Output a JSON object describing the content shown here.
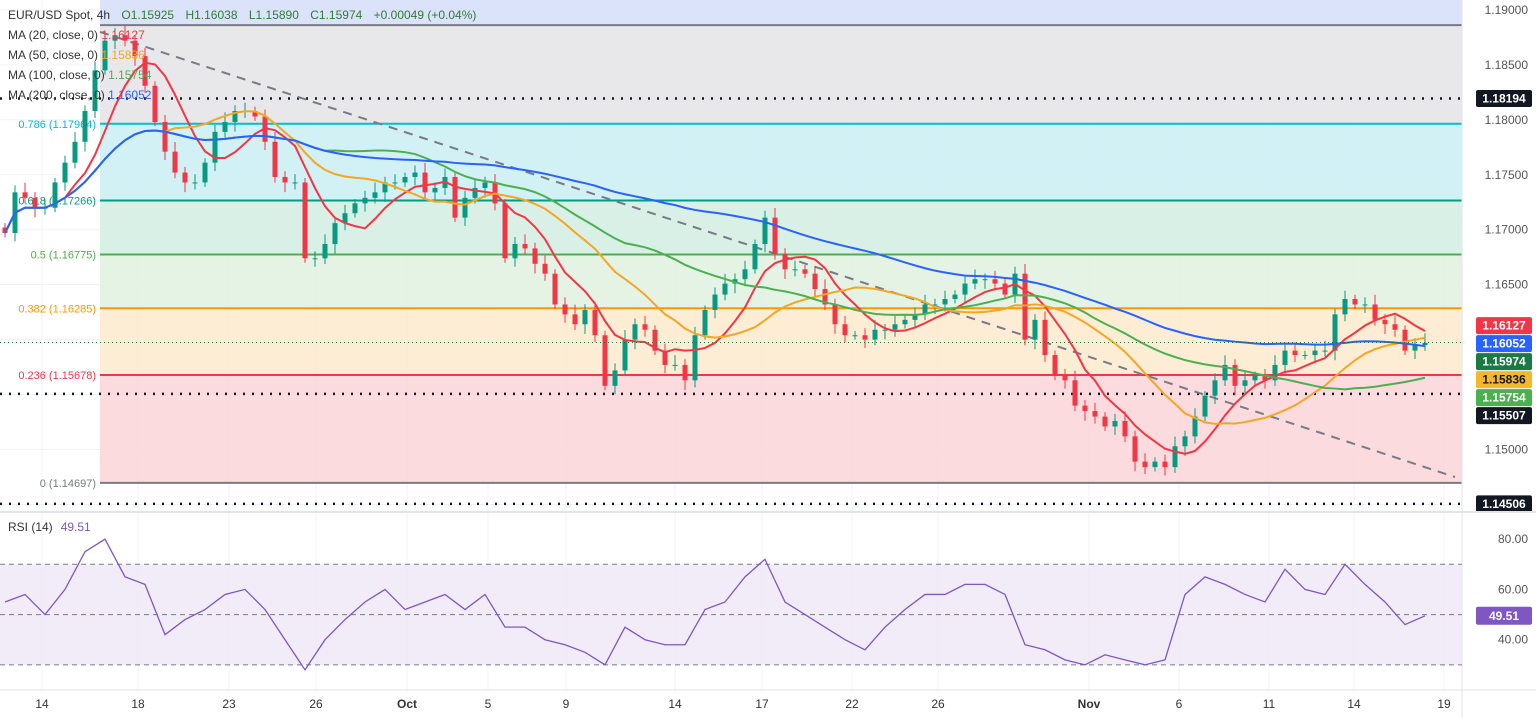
{
  "header": {
    "symbol": "EUR/USD Spot, 4h",
    "open": "O1.15925",
    "high": "H1.16038",
    "low": "L1.15890",
    "close": "C1.15974",
    "change": "+0.00049 (+0.04%)"
  },
  "indicators": [
    {
      "label": "MA (20, close, 0)",
      "value": "1.16127",
      "color": "#f23645"
    },
    {
      "label": "MA (50, close, 0)",
      "value": "1.15836",
      "color": "#f5a623"
    },
    {
      "label": "MA (100, close, 0)",
      "value": "1.15754",
      "color": "#4caf50"
    },
    {
      "label": "MA (200, close, 0)",
      "value": "1.16052",
      "color": "#2962ff"
    }
  ],
  "rsi": {
    "label": "RSI (14)",
    "value": "49.51",
    "color": "#7e57c2"
  },
  "chart_data": {
    "type": "candlestick",
    "price_range": [
      1.1445,
      1.1909
    ],
    "close": [
      1.1697,
      1.1734,
      1.1729,
      1.172,
      1.172,
      1.1743,
      1.1761,
      1.178,
      1.1808,
      1.1845,
      1.1872,
      1.1877,
      1.1872,
      1.1858,
      1.1831,
      1.1798,
      1.1771,
      1.1752,
      1.1743,
      1.1743,
      1.1761,
      1.1789,
      1.1798,
      1.1808,
      1.1808,
      1.1803,
      1.178,
      1.1748,
      1.1743,
      1.1743,
      1.1674,
      1.1674,
      1.1687,
      1.1706,
      1.1715,
      1.1724,
      1.1729,
      1.1734,
      1.1743,
      1.1743,
      1.1748,
      1.1752,
      1.1734,
      1.1738,
      1.1748,
      1.1711,
      1.1729,
      1.1738,
      1.1743,
      1.1724,
      1.1674,
      1.1687,
      1.1683,
      1.1669,
      1.166,
      1.1632,
      1.1623,
      1.1614,
      1.1627,
      1.1604,
      1.1558,
      1.1572,
      1.16,
      1.1614,
      1.1609,
      1.159,
      1.1577,
      1.1577,
      1.1563,
      1.1604,
      1.1627,
      1.1641,
      1.1651,
      1.1655,
      1.1664,
      1.1687,
      1.1711,
      1.1678,
      1.1664,
      1.1664,
      1.166,
      1.1646,
      1.1632,
      1.1614,
      1.1604,
      1.1604,
      1.16,
      1.1609,
      1.1609,
      1.1614,
      1.1618,
      1.1623,
      1.1632,
      1.1632,
      1.1637,
      1.1641,
      1.1651,
      1.1655,
      1.1655,
      1.1651,
      1.1641,
      1.166,
      1.16,
      1.1618,
      1.1586,
      1.1567,
      1.1563,
      1.154,
      1.1535,
      1.153,
      1.1521,
      1.1526,
      1.1512,
      1.1489,
      1.1484,
      1.1489,
      1.1484,
      1.1503,
      1.1512,
      1.153,
      1.1549,
      1.1563,
      1.1577,
      1.1558,
      1.1563,
      1.1567,
      1.1563,
      1.1577,
      1.159,
      1.1586,
      1.1586,
      1.159,
      1.159,
      1.1623,
      1.1637,
      1.1632,
      1.1632,
      1.1618,
      1.1614,
      1.1609,
      1.159,
      1.1595,
      1.1597
    ],
    "fib_levels": [
      {
        "ratio": "1",
        "price": 1.18861,
        "color": "#787b86",
        "fill": "#e6e6e8"
      },
      {
        "ratio": "0.786",
        "price": 1.17964,
        "label": "0.786 (1.17964)",
        "color": "#00bcd4",
        "fill": "#cdf0f4"
      },
      {
        "ratio": "0.618",
        "price": 1.17266,
        "label": "0.618 (1.17266)",
        "color": "#089981",
        "fill": "#d5eee4"
      },
      {
        "ratio": "0.5",
        "price": 1.16775,
        "label": "0.5 (1.16775)",
        "color": "#4caf50",
        "fill": "#e2f2e2"
      },
      {
        "ratio": "0.382",
        "price": 1.16285,
        "label": "0.382 (1.16285)",
        "color": "#ff9800",
        "fill": "#fdebd0"
      },
      {
        "ratio": "0.236",
        "price": 1.15678,
        "label": "0.236 (1.15678)",
        "color": "#f23645",
        "fill": "#fbd7da"
      },
      {
        "ratio": "0",
        "price": 1.14697,
        "label": "0 (1.14697)",
        "color": "#787b86"
      }
    ],
    "horizontal_lines": [
      1.18194,
      1.15507,
      1.14506
    ],
    "trendline": {
      "from_price": 1.188,
      "to_price": 1.1475
    },
    "price_ticks": [
      "1.19000",
      "1.18500",
      "1.18000",
      "1.17500",
      "1.17000",
      "1.16500",
      "1.15000"
    ],
    "price_badges": [
      {
        "value": "1.18194",
        "color": "#131722"
      },
      {
        "value": "1.16127",
        "color": "#f23645"
      },
      {
        "value": "1.16052",
        "color": "#2962ff"
      },
      {
        "value": "1.15974",
        "color": "#1b7a43"
      },
      {
        "value": "1.15836",
        "color": "#f5b82a",
        "text": "#131722"
      },
      {
        "value": "1.15754",
        "color": "#4caf50"
      },
      {
        "value": "1.15507",
        "color": "#131722"
      },
      {
        "value": "1.14506",
        "color": "#131722"
      }
    ],
    "x_ticks": [
      "14",
      "18",
      "23",
      "26",
      "Oct",
      "5",
      "9",
      "14",
      "17",
      "22",
      "26",
      "Nov",
      "6",
      "11",
      "14",
      "19"
    ],
    "rsi_values": [
      55,
      58,
      50,
      60,
      75,
      80,
      65,
      62,
      42,
      48,
      52,
      58,
      60,
      52,
      40,
      28,
      40,
      48,
      55,
      60,
      52,
      55,
      58,
      52,
      58,
      45,
      45,
      40,
      38,
      35,
      30,
      45,
      40,
      38,
      38,
      52,
      55,
      65,
      72,
      55,
      50,
      45,
      40,
      36,
      45,
      52,
      58,
      58,
      62,
      62,
      58,
      38,
      36,
      32,
      30,
      34,
      32,
      30,
      32,
      58,
      65,
      62,
      58,
      55,
      68,
      60,
      58,
      70,
      62,
      55,
      46,
      49.51
    ],
    "rsi_range": [
      20,
      90
    ],
    "rsi_levels": [
      70,
      50,
      30
    ],
    "rsi_ticks": [
      "80.00",
      "60.00",
      "40.00"
    ]
  }
}
